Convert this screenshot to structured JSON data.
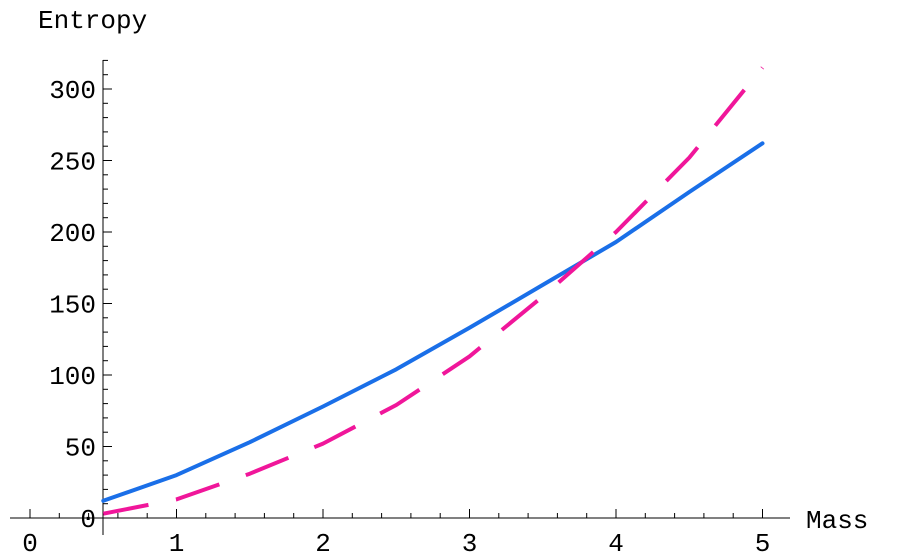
{
  "chart_data": {
    "type": "line",
    "xlabel": "Mass",
    "ylabel": "Entropy",
    "xlim": [
      0,
      5
    ],
    "ylim": [
      0,
      320
    ],
    "x_ticks": [
      "0",
      "1",
      "2",
      "3",
      "4",
      "5"
    ],
    "y_ticks": [
      "0",
      "50",
      "100",
      "150",
      "200",
      "250",
      "300"
    ],
    "grid": false,
    "legend": "none",
    "series": [
      {
        "style": "solid",
        "color": "#1a6fe8",
        "x": [
          0.5,
          1,
          1.5,
          2,
          2.5,
          3,
          3.5,
          4,
          4.5,
          5
        ],
        "y": [
          12,
          30,
          53,
          78,
          104,
          133,
          163,
          193,
          228,
          262
        ]
      },
      {
        "style": "dashed",
        "color": "#f0169a",
        "x": [
          0.5,
          1,
          1.5,
          2,
          2.5,
          3,
          3.5,
          4,
          4.5,
          5
        ],
        "y": [
          3,
          13,
          31,
          52,
          79,
          113,
          155,
          200,
          252,
          315
        ]
      }
    ]
  }
}
